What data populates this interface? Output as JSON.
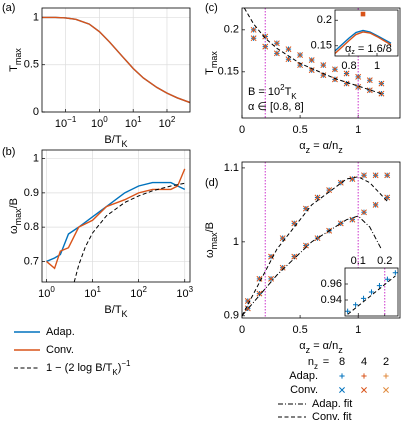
{
  "chart_data": [
    {
      "type": "line",
      "panel_label": "(a)",
      "xscale": "log",
      "xlim": [
        0.02,
        480
      ],
      "ylim": [
        0,
        1.1
      ],
      "xticks": [
        {
          "value": 0.1,
          "label": [
            {
              "t": "10"
            },
            {
              "t": "−1",
              "sup": true
            }
          ]
        },
        {
          "value": 1,
          "label": [
            {
              "t": "10"
            },
            {
              "t": "0",
              "sup": true
            }
          ]
        },
        {
          "value": 10,
          "label": [
            {
              "t": "10"
            },
            {
              "t": "1",
              "sup": true
            }
          ]
        },
        {
          "value": 100,
          "label": [
            {
              "t": "10"
            },
            {
              "t": "2",
              "sup": true
            }
          ]
        }
      ],
      "yticks": [
        0,
        0.5,
        1
      ],
      "grid": true,
      "xlabel": [
        {
          "t": "B/T"
        },
        {
          "t": "K",
          "sub": true
        }
      ],
      "ylabel": [
        {
          "t": "T"
        },
        {
          "t": "max",
          "sub": true
        }
      ],
      "x": [
        0.02,
        0.05,
        0.1,
        0.2,
        0.5,
        1,
        2,
        5,
        10,
        20,
        50,
        100,
        200,
        480
      ],
      "series": [
        {
          "color": "#0072bd",
          "values": [
            1,
            1,
            0.995,
            0.98,
            0.93,
            0.85,
            0.74,
            0.58,
            0.46,
            0.36,
            0.26,
            0.2,
            0.15,
            0.1
          ]
        },
        {
          "color": "#d95319",
          "values": [
            1,
            1,
            0.995,
            0.98,
            0.93,
            0.85,
            0.74,
            0.58,
            0.46,
            0.36,
            0.26,
            0.2,
            0.15,
            0.1
          ]
        }
      ]
    },
    {
      "type": "line",
      "panel_label": "(b)",
      "xscale": "log",
      "xlim": [
        0.8,
        1300
      ],
      "ylim": [
        0.64,
        1.025
      ],
      "xticks": [
        {
          "value": 1,
          "label": [
            {
              "t": "10"
            },
            {
              "t": "0",
              "sup": true
            }
          ]
        },
        {
          "value": 10,
          "label": [
            {
              "t": "10"
            },
            {
              "t": "1",
              "sup": true
            }
          ]
        },
        {
          "value": 100,
          "label": [
            {
              "t": "10"
            },
            {
              "t": "2",
              "sup": true
            }
          ]
        },
        {
          "value": 1000,
          "label": [
            {
              "t": "10"
            },
            {
              "t": "3",
              "sup": true
            }
          ]
        }
      ],
      "yticks": [
        0.7,
        0.8,
        0.9,
        1
      ],
      "grid": true,
      "xlabel": [
        {
          "t": "B/T"
        },
        {
          "t": "K",
          "sub": true
        }
      ],
      "ylabel": [
        {
          "t": "ω"
        },
        {
          "t": "max",
          "sub": true
        },
        {
          "t": "/B"
        }
      ],
      "series": [
        {
          "name": "Adap.",
          "color": "#0072bd",
          "x": [
            1,
            1.5,
            2,
            3,
            5,
            10,
            20,
            50,
            100,
            200,
            500,
            700,
            1000
          ],
          "values": [
            0.7,
            0.71,
            0.72,
            0.78,
            0.8,
            0.83,
            0.86,
            0.9,
            0.92,
            0.93,
            0.93,
            0.92,
            0.91
          ]
        },
        {
          "name": "Conv.",
          "color": "#d95319",
          "x": [
            1,
            1.5,
            2,
            3,
            5,
            10,
            20,
            50,
            100,
            200,
            500,
            700,
            1000
          ],
          "values": [
            0.7,
            0.68,
            0.73,
            0.74,
            0.8,
            0.82,
            0.86,
            0.88,
            0.9,
            0.91,
            0.91,
            0.92,
            0.97
          ]
        },
        {
          "name": [
            {
              "t": "1 − (2 log B/T"
            },
            {
              "t": "K",
              "sub": true
            },
            {
              "t": ")"
            },
            {
              "t": "−1",
              "sup": true
            }
          ],
          "color": "#000000",
          "style": "dashed",
          "x": [
            4,
            5,
            7,
            10,
            20,
            50,
            100,
            200,
            500,
            1000
          ],
          "values": [
            0.64,
            0.689,
            0.743,
            0.783,
            0.833,
            0.872,
            0.891,
            0.906,
            0.92,
            0.928
          ]
        }
      ]
    },
    {
      "type": "scatter",
      "panel_label": "(c)",
      "xlim": [
        0,
        1.36
      ],
      "ylim": [
        0.095,
        0.226
      ],
      "xticks": [
        0,
        0.5,
        1
      ],
      "yticks": [
        0.15,
        0.2
      ],
      "grid": false,
      "xlabel": [
        {
          "t": "α"
        },
        {
          "t": "z",
          "sub": true
        },
        {
          "t": " = α/n"
        },
        {
          "t": "z",
          "sub": true
        }
      ],
      "ylabel": [
        {
          "t": "T"
        },
        {
          "t": "max",
          "sub": true
        }
      ],
      "vlines": [
        0.2,
        1
      ],
      "vline_color": "#cc33cc",
      "annotations": [
        [
          {
            "t": "B = 10"
          },
          {
            "t": "2",
            "sup": true
          },
          {
            "t": "T"
          },
          {
            "t": "K",
            "sub": true
          }
        ],
        "α ∈ [0.8, 8]"
      ],
      "x": [
        0.1,
        0.2,
        0.3,
        0.4,
        0.5,
        0.6,
        0.7,
        0.8,
        0.9,
        1.0,
        1.1,
        1.2
      ],
      "series": [
        {
          "color": "#0072bd",
          "marker": "+",
          "values": [
            0.2,
            0.192,
            0.184,
            0.177,
            0.17,
            0.164,
            0.158,
            0.153,
            0.148,
            0.144,
            0.14,
            0.136
          ]
        },
        {
          "color": "#0072bd",
          "marker": "+",
          "values": [
            0.19,
            0.18,
            0.172,
            0.165,
            0.158,
            0.152,
            0.146,
            0.141,
            0.136,
            0.132,
            0.128,
            0.124
          ]
        },
        {
          "color": "#d95319",
          "marker": "x",
          "values": [
            0.2,
            0.192,
            0.184,
            0.177,
            0.17,
            0.164,
            0.158,
            0.153,
            0.148,
            0.144,
            0.14,
            0.136
          ]
        },
        {
          "color": "#d95319",
          "marker": "x",
          "values": [
            0.19,
            0.18,
            0.172,
            0.165,
            0.158,
            0.152,
            0.146,
            0.141,
            0.136,
            0.132,
            0.128,
            0.124
          ]
        },
        {
          "color": "#000000",
          "style": "dashed",
          "x": [
            0.02,
            0.1,
            0.2,
            0.3,
            0.5,
            0.8,
            1.2
          ],
          "values": [
            0.226,
            0.207,
            0.19,
            0.178,
            0.16,
            0.142,
            0.124
          ]
        }
      ]
    },
    {
      "type": "scatter",
      "panel_label": "(d)",
      "xlim": [
        0,
        1.36
      ],
      "ylim": [
        0.897,
        1.108
      ],
      "xticks": [
        0,
        0.5,
        1
      ],
      "yticks": [
        0.9,
        1,
        1.1
      ],
      "grid": false,
      "xlabel": [
        {
          "t": "α"
        },
        {
          "t": "z",
          "sub": true
        },
        {
          "t": " = α/n"
        },
        {
          "t": "z",
          "sub": true
        }
      ],
      "ylabel": [
        {
          "t": "ω"
        },
        {
          "t": "max",
          "sub": true
        },
        {
          "t": "/B"
        }
      ],
      "vlines": [
        0.2,
        1
      ],
      "vline_color": "#cc33cc",
      "x": [
        0.05,
        0.15,
        0.25,
        0.35,
        0.45,
        0.55,
        0.65,
        0.75,
        0.85,
        0.95,
        1.05,
        1.15,
        1.25
      ],
      "series": [
        {
          "color": "#0072bd",
          "marker": "+",
          "values": [
            0.92,
            0.95,
            0.98,
            1.005,
            1.025,
            1.045,
            1.06,
            1.07,
            1.08,
            1.085,
            1.09,
            1.09,
            1.09
          ]
        },
        {
          "color": "#0072bd",
          "marker": "+",
          "values": [
            0.91,
            0.93,
            0.95,
            0.965,
            0.98,
            0.995,
            1.005,
            1.015,
            1.025,
            1.03,
            1.04,
            1.05,
            1.06
          ]
        },
        {
          "color": "#d95319",
          "marker": "x",
          "values": [
            0.92,
            0.95,
            0.98,
            1.005,
            1.025,
            1.045,
            1.06,
            1.07,
            1.08,
            1.085,
            1.09,
            1.09,
            1.09
          ]
        },
        {
          "color": "#d95319",
          "marker": "x",
          "values": [
            0.91,
            0.93,
            0.95,
            0.965,
            0.98,
            0.995,
            1.005,
            1.015,
            1.025,
            1.03,
            1.04,
            1.05,
            1.06
          ]
        },
        {
          "color": "#000000",
          "style": "dashed",
          "x": [
            0,
            0.3,
            0.6,
            0.9,
            1.0,
            1.1,
            1.25
          ],
          "values": [
            0.9,
            0.99,
            1.05,
            1.085,
            1.088,
            1.08,
            1.055
          ]
        },
        {
          "color": "#000000",
          "style": "dashdot",
          "x": [
            0,
            0.3,
            0.6,
            0.9,
            1.0,
            1.1,
            1.2
          ],
          "values": [
            0.9,
            0.955,
            1.0,
            1.03,
            1.035,
            1.02,
            0.99
          ]
        }
      ]
    },
    {
      "type": "line",
      "xlim": [
        0.7,
        1.15
      ],
      "ylim": [
        0.13,
        0.22
      ],
      "xticks": [
        0.8,
        1
      ],
      "yticks": [
        0.15,
        0.2
      ],
      "grid": false,
      "annotations": [
        [
          {
            "t": "α"
          },
          {
            "t": "z",
            "sub": true
          },
          {
            "t": " = 1.6/8"
          }
        ]
      ],
      "x": [
        0.7,
        0.8,
        0.85,
        0.9,
        0.95,
        1.0,
        1.1
      ],
      "series": [
        {
          "color": "#0072bd",
          "values": [
            0.14,
            0.165,
            0.176,
            0.18,
            0.177,
            0.17,
            0.155
          ]
        },
        {
          "color": "#d95319",
          "values": [
            0.135,
            0.16,
            0.172,
            0.177,
            0.175,
            0.168,
            0.152
          ]
        },
        {
          "color": "#d95319",
          "marker": "s",
          "x": [
            0.9
          ],
          "values": [
            0.212
          ]
        }
      ]
    },
    {
      "type": "scatter",
      "xlim": [
        0.05,
        0.25
      ],
      "ylim": [
        0.92,
        0.98
      ],
      "xticks": [
        0.1,
        0.2
      ],
      "yticks": [
        0.94,
        0.96
      ],
      "grid": false,
      "vlines": [
        0.2
      ],
      "vline_color": "#cc33cc",
      "x": [
        0.06,
        0.09,
        0.12,
        0.15,
        0.18,
        0.21,
        0.24
      ],
      "series": [
        {
          "color": "#0072bd",
          "marker": "+",
          "values": [
            0.926,
            0.934,
            0.942,
            0.95,
            0.958,
            0.966,
            0.974
          ]
        },
        {
          "color": "#000000",
          "style": "dashed",
          "values": [
            0.922,
            0.93,
            0.938,
            0.946,
            0.954,
            0.962,
            0.97
          ]
        }
      ]
    }
  ],
  "legend": {
    "header": [
      {
        "t": "n"
      },
      {
        "t": "z",
        "sub": true
      }
    ],
    "nz": [
      8,
      4,
      2
    ],
    "nz_colors": [
      "#0072bd",
      "#d95319",
      "#e08a3c"
    ],
    "rows": [
      {
        "label": "Adap.",
        "marker": "+"
      },
      {
        "label": "Conv.",
        "marker": "x"
      }
    ],
    "fits": [
      {
        "label": "Adap.  fit",
        "style": "dashdot"
      },
      {
        "label": "Conv.  fit",
        "style": "dashed"
      }
    ]
  }
}
